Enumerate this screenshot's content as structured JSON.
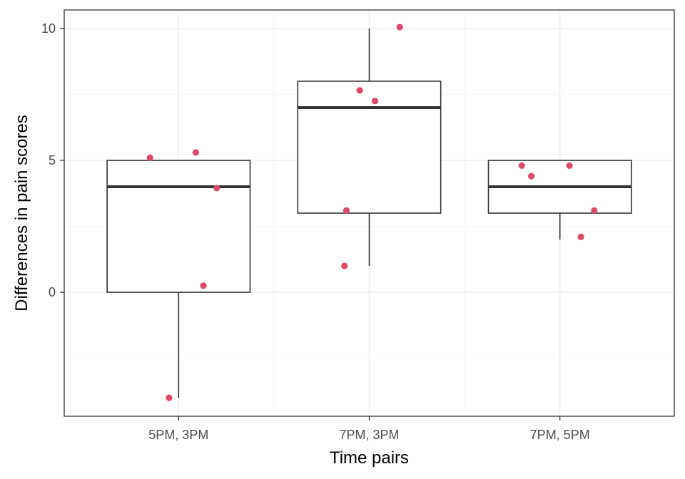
{
  "chart_data": {
    "type": "box",
    "xlabel": "Time pairs",
    "ylabel": "Differences in pain scores",
    "categories": [
      "5PM, 3PM",
      "7PM, 3PM",
      "7PM, 5PM"
    ],
    "ylim": [
      -4.7,
      10.7
    ],
    "yticks": [
      0,
      5,
      10
    ],
    "yticks_minor": [
      -2.5,
      2.5,
      7.5
    ],
    "grid": true,
    "boxes": [
      {
        "category": "5PM, 3PM",
        "whisker_low": -4,
        "q1": 0,
        "median": 4,
        "q3": 5,
        "whisker_high": 5
      },
      {
        "category": "7PM, 3PM",
        "whisker_low": 1,
        "q1": 3,
        "median": 7,
        "q3": 8,
        "whisker_high": 10
      },
      {
        "category": "7PM, 5PM",
        "whisker_low": 2,
        "q1": 3,
        "median": 4,
        "q3": 5,
        "whisker_high": 5
      }
    ],
    "points": [
      {
        "category": "5PM, 3PM",
        "jitter": -0.15,
        "y": 5.1
      },
      {
        "category": "5PM, 3PM",
        "jitter": 0.09,
        "y": 5.3
      },
      {
        "category": "5PM, 3PM",
        "jitter": 0.2,
        "y": 3.95
      },
      {
        "category": "5PM, 3PM",
        "jitter": 0.13,
        "y": 0.25
      },
      {
        "category": "5PM, 3PM",
        "jitter": -0.05,
        "y": -4.0
      },
      {
        "category": "7PM, 3PM",
        "jitter": 0.16,
        "y": 10.05
      },
      {
        "category": "7PM, 3PM",
        "jitter": -0.05,
        "y": 7.65
      },
      {
        "category": "7PM, 3PM",
        "jitter": 0.03,
        "y": 7.25
      },
      {
        "category": "7PM, 3PM",
        "jitter": -0.12,
        "y": 3.1
      },
      {
        "category": "7PM, 3PM",
        "jitter": -0.13,
        "y": 1.0
      },
      {
        "category": "7PM, 5PM",
        "jitter": -0.2,
        "y": 4.8
      },
      {
        "category": "7PM, 5PM",
        "jitter": -0.15,
        "y": 4.4
      },
      {
        "category": "7PM, 5PM",
        "jitter": 0.05,
        "y": 4.8
      },
      {
        "category": "7PM, 5PM",
        "jitter": 0.18,
        "y": 3.1
      },
      {
        "category": "7PM, 5PM",
        "jitter": 0.11,
        "y": 2.1
      }
    ],
    "colors": {
      "point": "#dc4a6a",
      "box_line": "#333333",
      "median_line": "#333333",
      "grid_major": "#ebebeb",
      "grid_minor": "#f5f5f5",
      "panel_border": "#333333"
    }
  }
}
